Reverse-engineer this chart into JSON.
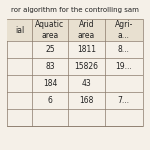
{
  "title": "ror algorithm for the controlling sam",
  "col_headers": [
    "ial",
    "Aquatic\narea",
    "Arid\narea",
    "Agri-\na..."
  ],
  "rows": [
    [
      "",
      "25",
      "1811",
      "8..."
    ],
    [
      "",
      "83",
      "15826",
      "19..."
    ],
    [
      "",
      "184",
      "43",
      ""
    ],
    [
      "",
      "6",
      "168",
      "7..."
    ],
    [
      "",
      "",
      "",
      ""
    ]
  ],
  "bg_color": "#f5f0e8",
  "line_color": "#8a7a6a",
  "text_color": "#222222",
  "header_bg": "#e8e0d0",
  "font_size": 5.5,
  "title_font_size": 5.0
}
